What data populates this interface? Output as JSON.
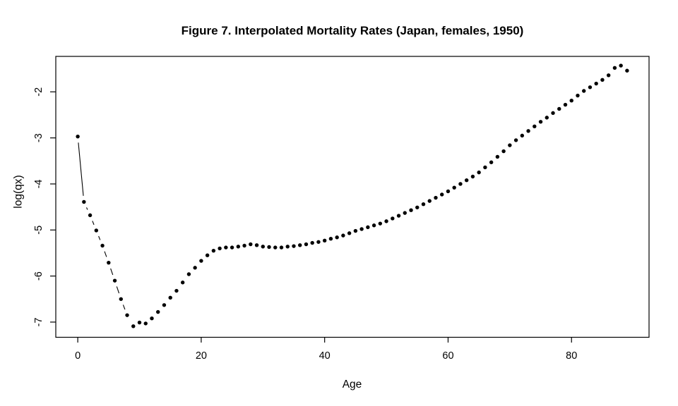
{
  "figure": {
    "background_color": "#ffffff",
    "foreground_color": "#000000"
  },
  "chart_data": {
    "type": "scatter",
    "connect_style": "points joined by short line segments with gaps at markers (R plot type='b')",
    "title": "Figure 7. Interpolated Mortality Rates (Japan, females, 1950)",
    "xlabel": "Age",
    "ylabel": "log(qx)",
    "grid": false,
    "legend_position": "none",
    "point_color": "#000000",
    "line_color": "#000000",
    "xticks": [
      0,
      20,
      40,
      60,
      80
    ],
    "yticks": [
      -7,
      -6,
      -5,
      -4,
      -3,
      -2
    ],
    "xlim": [
      -3.56,
      92.56
    ],
    "ylim": [
      -7.33,
      -1.23
    ],
    "x": [
      0,
      1,
      2,
      3,
      4,
      5,
      6,
      7,
      8,
      9,
      10,
      11,
      12,
      13,
      14,
      15,
      16,
      17,
      18,
      19,
      20,
      21,
      22,
      23,
      24,
      25,
      26,
      27,
      28,
      29,
      30,
      31,
      32,
      33,
      34,
      35,
      36,
      37,
      38,
      39,
      40,
      41,
      42,
      43,
      44,
      45,
      46,
      47,
      48,
      49,
      50,
      51,
      52,
      53,
      54,
      55,
      56,
      57,
      58,
      59,
      60,
      61,
      62,
      63,
      64,
      65,
      66,
      67,
      68,
      69,
      70,
      71,
      72,
      73,
      74,
      75,
      76,
      77,
      78,
      79,
      80,
      81,
      82,
      83,
      84,
      85,
      86,
      87,
      88,
      89
    ],
    "y": [
      -2.97,
      -4.39,
      -4.68,
      -5.01,
      -5.34,
      -5.71,
      -6.1,
      -6.5,
      -6.85,
      -7.09,
      -7.01,
      -7.03,
      -6.92,
      -6.78,
      -6.63,
      -6.47,
      -6.32,
      -6.14,
      -5.96,
      -5.82,
      -5.67,
      -5.55,
      -5.45,
      -5.4,
      -5.38,
      -5.38,
      -5.36,
      -5.34,
      -5.31,
      -5.33,
      -5.36,
      -5.37,
      -5.38,
      -5.38,
      -5.36,
      -5.35,
      -5.33,
      -5.31,
      -5.28,
      -5.26,
      -5.23,
      -5.19,
      -5.16,
      -5.12,
      -5.07,
      -5.02,
      -4.98,
      -4.94,
      -4.9,
      -4.86,
      -4.81,
      -4.75,
      -4.69,
      -4.63,
      -4.57,
      -4.51,
      -4.44,
      -4.37,
      -4.3,
      -4.23,
      -4.16,
      -4.08,
      -4.0,
      -3.92,
      -3.84,
      -3.75,
      -3.64,
      -3.53,
      -3.41,
      -3.29,
      -3.16,
      -3.05,
      -2.95,
      -2.85,
      -2.75,
      -2.65,
      -2.56,
      -2.46,
      -2.37,
      -2.28,
      -2.19,
      -2.08,
      -1.98,
      -1.9,
      -1.82,
      -1.74,
      -1.64,
      -1.48,
      -1.43,
      -1.54
    ]
  }
}
